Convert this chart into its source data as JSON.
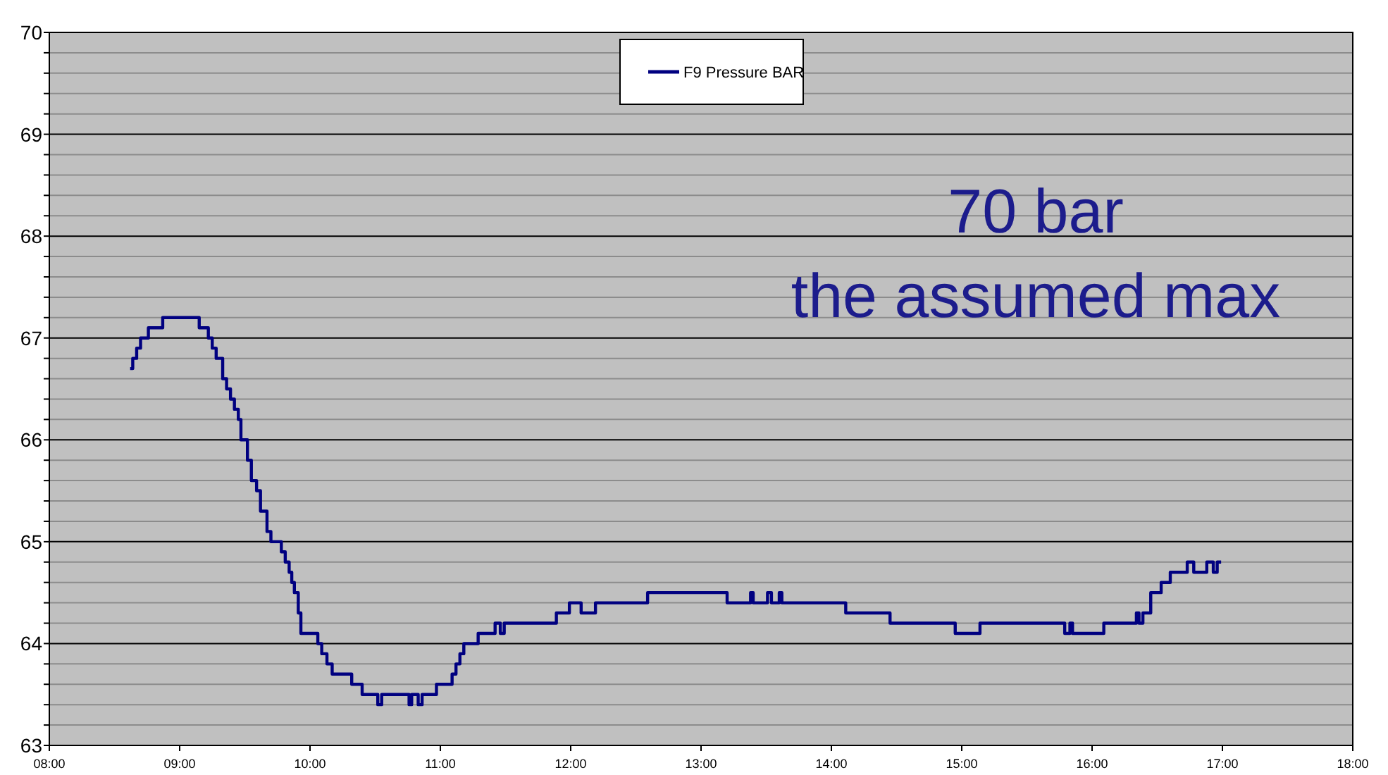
{
  "chart_data": {
    "type": "step",
    "x": [
      8.62,
      8.64,
      8.67,
      8.7,
      8.76,
      8.87,
      9.15,
      9.22,
      9.25,
      9.28,
      9.33,
      9.36,
      9.39,
      9.42,
      9.45,
      9.47,
      9.52,
      9.55,
      9.59,
      9.62,
      9.67,
      9.7,
      9.78,
      9.81,
      9.84,
      9.86,
      9.88,
      9.91,
      9.93,
      10.06,
      10.09,
      10.13,
      10.17,
      10.32,
      10.4,
      10.52,
      10.55,
      10.76,
      10.78,
      10.83,
      10.86,
      10.97,
      11.09,
      11.12,
      11.15,
      11.18,
      11.29,
      11.42,
      11.46,
      11.49,
      11.89,
      11.99,
      12.08,
      12.19,
      12.59,
      13.2,
      13.38,
      13.4,
      13.51,
      13.54,
      13.6,
      13.62,
      14.11,
      14.45,
      14.95,
      15.14,
      15.79,
      15.83,
      15.85,
      15.88,
      16.09,
      16.34,
      16.36,
      16.39,
      16.45,
      16.53,
      16.6,
      16.73,
      16.78,
      16.88,
      16.93,
      16.96,
      16.99
    ],
    "series": [
      {
        "name": "F9 Pressure BAR",
        "color": "#000080",
        "values": [
          66.7,
          66.8,
          66.9,
          67.0,
          67.1,
          67.2,
          67.1,
          67.0,
          66.9,
          66.8,
          66.6,
          66.5,
          66.4,
          66.3,
          66.2,
          66.0,
          65.8,
          65.6,
          65.5,
          65.3,
          65.1,
          65.0,
          64.9,
          64.8,
          64.7,
          64.6,
          64.5,
          64.3,
          64.1,
          64.0,
          63.9,
          63.8,
          63.7,
          63.6,
          63.5,
          63.4,
          63.5,
          63.4,
          63.5,
          63.4,
          63.5,
          63.6,
          63.7,
          63.8,
          63.9,
          64.0,
          64.1,
          64.2,
          64.1,
          64.2,
          64.3,
          64.4,
          64.3,
          64.4,
          64.5,
          64.4,
          64.5,
          64.4,
          64.5,
          64.4,
          64.5,
          64.4,
          64.3,
          64.2,
          64.1,
          64.2,
          64.1,
          64.2,
          64.1,
          64.1,
          64.2,
          64.3,
          64.2,
          64.3,
          64.5,
          64.6,
          64.7,
          64.8,
          64.7,
          64.8,
          64.7,
          64.8,
          64.8
        ]
      }
    ],
    "xlim": [
      8,
      18
    ],
    "xticks": [
      {
        "value": 8,
        "label": "08:00"
      },
      {
        "value": 9,
        "label": "09:00"
      },
      {
        "value": 10,
        "label": "10:00"
      },
      {
        "value": 11,
        "label": "11:00"
      },
      {
        "value": 12,
        "label": "12:00"
      },
      {
        "value": 13,
        "label": "13:00"
      },
      {
        "value": 14,
        "label": "14:00"
      },
      {
        "value": 15,
        "label": "15:00"
      },
      {
        "value": 16,
        "label": "16:00"
      },
      {
        "value": 17,
        "label": "17:00"
      },
      {
        "value": 18,
        "label": "18:00"
      }
    ],
    "ylim": [
      63,
      70
    ],
    "yticks": [
      63,
      {
        "value": 63.2,
        "label": null
      },
      {
        "value": 63.4,
        "label": null
      },
      {
        "value": 63.6,
        "label": null
      },
      {
        "value": 63.8,
        "label": null
      },
      64,
      {
        "value": 64.2,
        "label": null
      },
      {
        "value": 64.4,
        "label": null
      },
      {
        "value": 64.6,
        "label": null
      },
      {
        "value": 64.8,
        "label": null
      },
      65,
      {
        "value": 65.2,
        "label": null
      },
      {
        "value": 65.4,
        "label": null
      },
      {
        "value": 65.6,
        "label": null
      },
      {
        "value": 65.8,
        "label": null
      },
      66,
      {
        "value": 66.2,
        "label": null
      },
      {
        "value": 66.4,
        "label": null
      },
      {
        "value": 66.6,
        "label": null
      },
      {
        "value": 66.8,
        "label": null
      },
      67,
      {
        "value": 67.2,
        "label": null
      },
      {
        "value": 67.4,
        "label": null
      },
      {
        "value": 67.6,
        "label": null
      },
      {
        "value": 67.8,
        "label": null
      },
      68,
      {
        "value": 68.2,
        "label": null
      },
      {
        "value": 68.4,
        "label": null
      },
      {
        "value": 68.6,
        "label": null
      },
      {
        "value": 68.8,
        "label": null
      },
      69,
      {
        "value": 69.2,
        "label": null
      },
      {
        "value": 69.4,
        "label": null
      },
      {
        "value": 69.6,
        "label": null
      },
      {
        "value": 69.8,
        "label": null
      },
      70
    ],
    "grid": true,
    "legend": "top",
    "annotations": [
      "70 bar the assumed max"
    ]
  }
}
